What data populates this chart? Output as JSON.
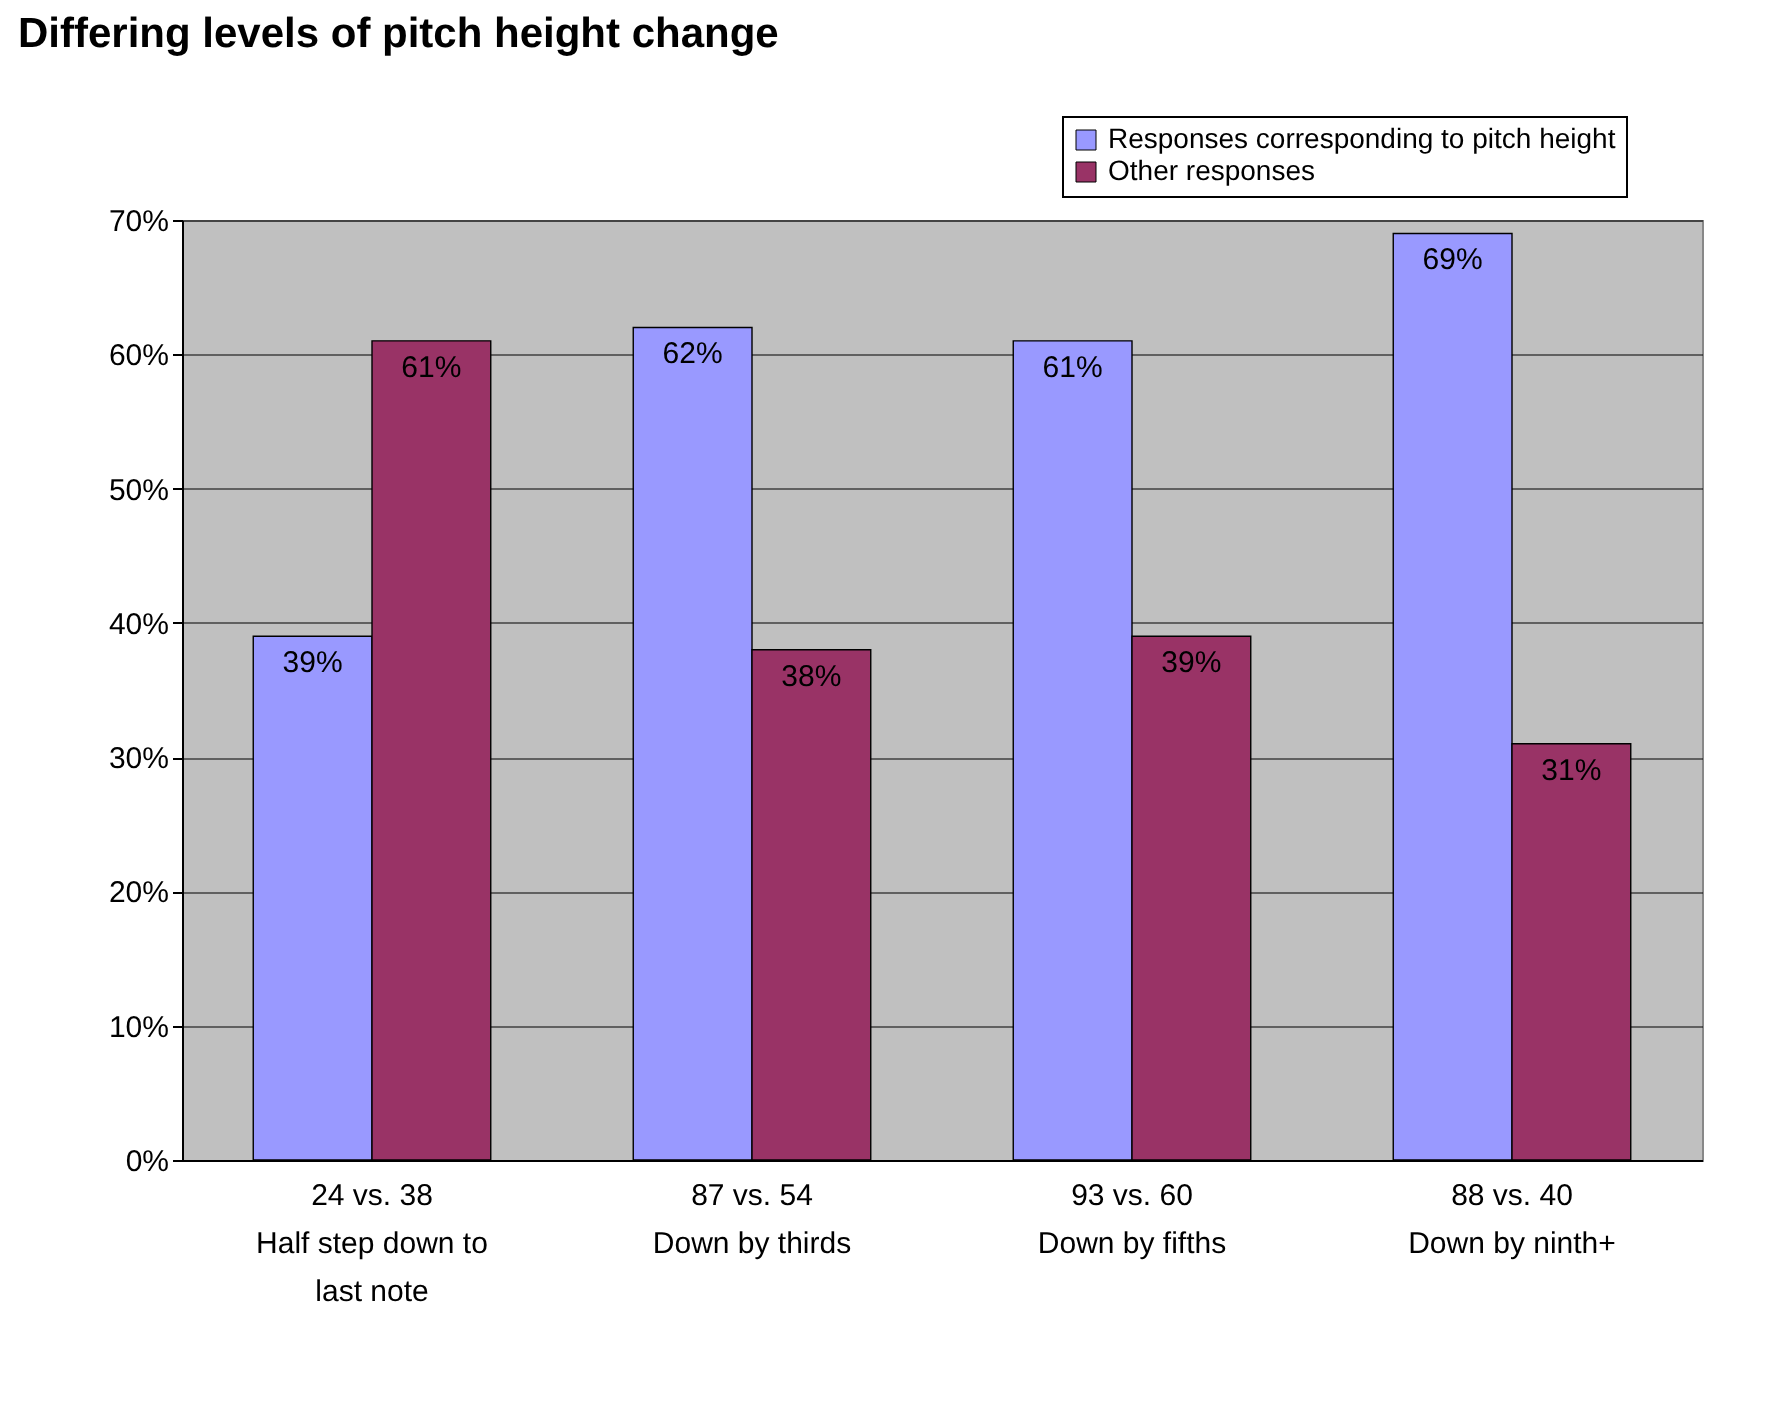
{
  "chart_data": {
    "type": "bar",
    "title": "Differing levels of pitch height change",
    "categories": [
      "24 vs. 38\nHalf step down to\nlast note",
      "87 vs. 54\nDown by thirds",
      "93 vs. 60\nDown by fifths",
      "88 vs. 40\nDown by ninth+"
    ],
    "series": [
      {
        "name": "Responses corresponding to pitch height",
        "color": "#9999ff",
        "values": [
          39,
          62,
          61,
          69
        ],
        "value_labels": [
          "39%",
          "62%",
          "61%",
          "69%"
        ]
      },
      {
        "name": "Other responses",
        "color": "#993366",
        "values": [
          61,
          38,
          39,
          31
        ],
        "value_labels": [
          "61%",
          "38%",
          "39%",
          "31%"
        ]
      }
    ],
    "ylim": [
      0,
      70
    ],
    "yticks": [
      {
        "value": 0,
        "label": "0%"
      },
      {
        "value": 10,
        "label": "10%"
      },
      {
        "value": 20,
        "label": "20%"
      },
      {
        "value": 30,
        "label": "30%"
      },
      {
        "value": 40,
        "label": "40%"
      },
      {
        "value": 50,
        "label": "50%"
      },
      {
        "value": 60,
        "label": "60%"
      },
      {
        "value": 70,
        "label": "70%"
      }
    ],
    "grid": "y",
    "legend": "top right"
  }
}
